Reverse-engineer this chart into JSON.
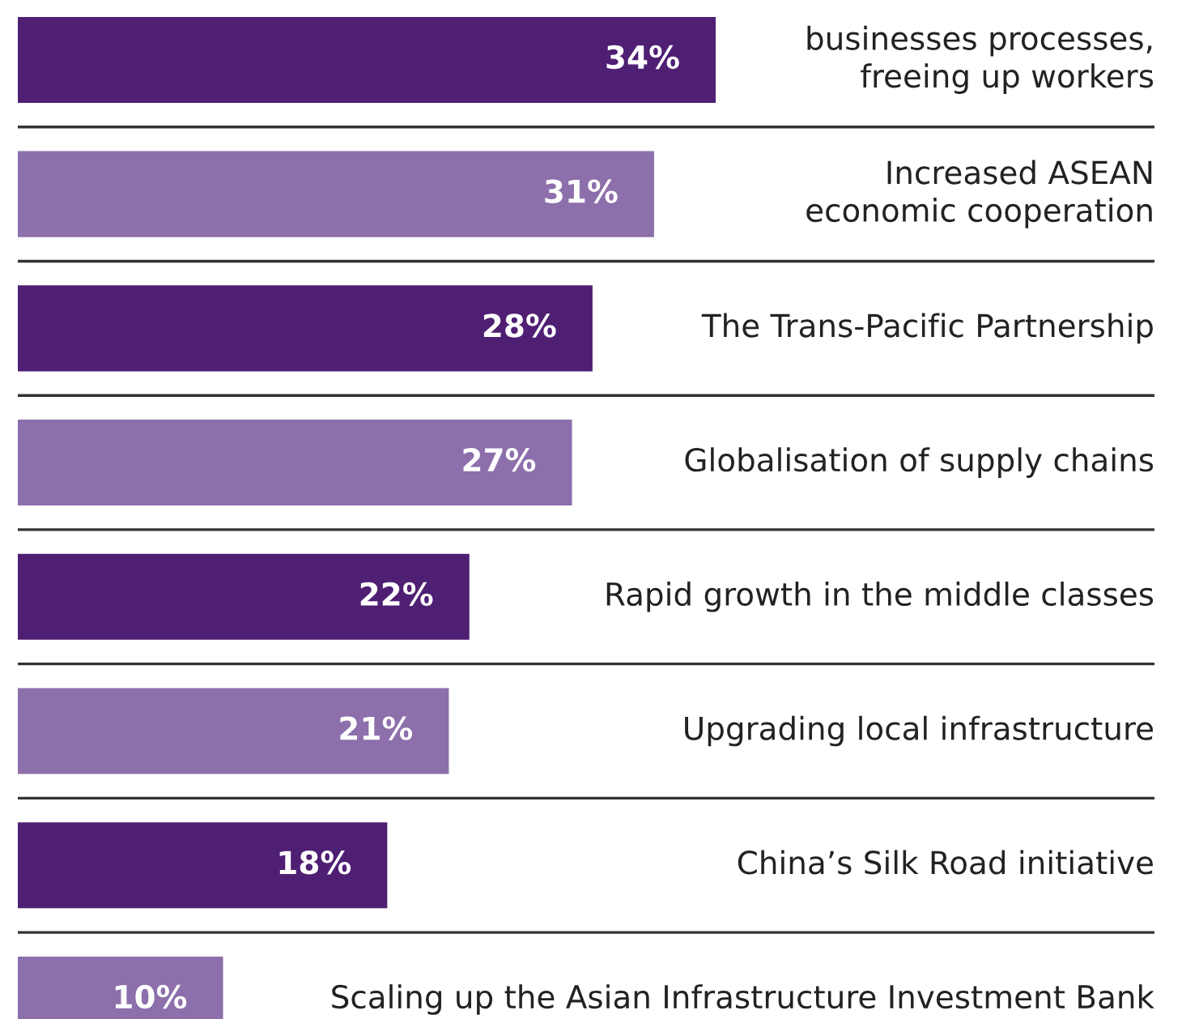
{
  "chart_data": {
    "type": "bar",
    "orientation": "horizontal",
    "categories": [
      "businesses processes,\nfreeing up workers",
      "Increased ASEAN\neconomic cooperation",
      "The Trans-Pacific Partnership",
      "Globalisation of supply chains",
      "Rapid growth in the middle classes",
      "Upgrading local infrastructure",
      "China’s Silk Road initiative",
      "Scaling up the Asian Infrastructure Investment Bank"
    ],
    "values": [
      34,
      31,
      28,
      27,
      22,
      21,
      18,
      10
    ],
    "value_labels": [
      "34%",
      "31%",
      "28%",
      "27%",
      "22%",
      "21%",
      "18%",
      "10%"
    ],
    "colors": [
      "#4f1f73",
      "#8c6fab",
      "#4f1f73",
      "#8c6fab",
      "#4f1f73",
      "#8c6fab",
      "#4f1f73",
      "#8c6fab"
    ],
    "grid": "y"
  }
}
